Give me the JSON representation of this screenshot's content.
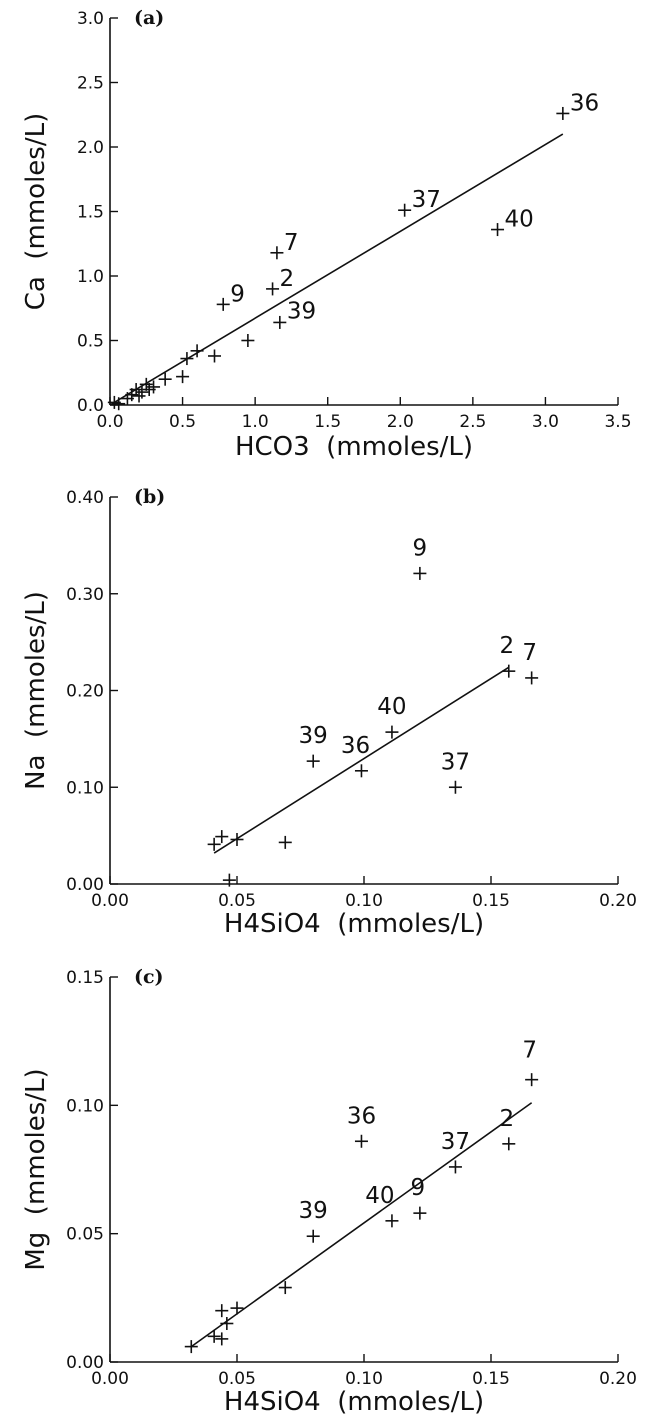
{
  "chart_data": [
    {
      "type": "scatter",
      "panel_label": "(a)",
      "xlabel": "HCO3  (mmoles/L)",
      "ylabel": "Ca  (mmoles/L)",
      "xlim": [
        0.0,
        3.5
      ],
      "ylim": [
        0.0,
        3.0
      ],
      "xticks": [
        "0.0",
        "0.5",
        "1.0",
        "1.5",
        "2.0",
        "2.5",
        "3.0",
        "3.5"
      ],
      "yticks": [
        "0.0",
        "0.5",
        "1.0",
        "1.5",
        "2.0",
        "2.5",
        "3.0"
      ],
      "grid": false,
      "points": [
        {
          "x": 0.03,
          "y": 0.02,
          "label": ""
        },
        {
          "x": 0.06,
          "y": 0.01,
          "label": ""
        },
        {
          "x": 0.12,
          "y": 0.05,
          "label": ""
        },
        {
          "x": 0.15,
          "y": 0.08,
          "label": ""
        },
        {
          "x": 0.18,
          "y": 0.12,
          "label": ""
        },
        {
          "x": 0.2,
          "y": 0.07,
          "label": ""
        },
        {
          "x": 0.22,
          "y": 0.1,
          "label": ""
        },
        {
          "x": 0.25,
          "y": 0.16,
          "label": ""
        },
        {
          "x": 0.27,
          "y": 0.12,
          "label": ""
        },
        {
          "x": 0.3,
          "y": 0.14,
          "label": ""
        },
        {
          "x": 0.38,
          "y": 0.2,
          "label": ""
        },
        {
          "x": 0.5,
          "y": 0.22,
          "label": ""
        },
        {
          "x": 0.53,
          "y": 0.36,
          "label": ""
        },
        {
          "x": 0.6,
          "y": 0.42,
          "label": ""
        },
        {
          "x": 0.72,
          "y": 0.38,
          "label": ""
        },
        {
          "x": 0.78,
          "y": 0.78,
          "label": "9"
        },
        {
          "x": 0.95,
          "y": 0.5,
          "label": ""
        },
        {
          "x": 1.12,
          "y": 0.9,
          "label": "2"
        },
        {
          "x": 1.15,
          "y": 1.18,
          "label": "7"
        },
        {
          "x": 1.17,
          "y": 0.64,
          "label": "39"
        },
        {
          "x": 2.03,
          "y": 1.51,
          "label": "37"
        },
        {
          "x": 2.67,
          "y": 1.36,
          "label": "40"
        },
        {
          "x": 3.12,
          "y": 2.26,
          "label": "36"
        }
      ],
      "fit_line": {
        "x": [
          0.0,
          3.12
        ],
        "y": [
          0.0,
          2.1
        ]
      }
    },
    {
      "type": "scatter",
      "panel_label": "(b)",
      "xlabel": "H4SiO4  (mmoles/L)",
      "ylabel": "Na  (mmoles/L)",
      "xlim": [
        0.0,
        0.2
      ],
      "ylim": [
        0.0,
        0.4
      ],
      "xticks": [
        "0.00",
        "0.05",
        "0.10",
        "0.15",
        "0.20"
      ],
      "yticks": [
        "0.00",
        "0.10",
        "0.20",
        "0.30",
        "0.40"
      ],
      "grid": false,
      "points": [
        {
          "x": 0.041,
          "y": 0.041,
          "label": ""
        },
        {
          "x": 0.044,
          "y": 0.049,
          "label": ""
        },
        {
          "x": 0.047,
          "y": 0.004,
          "label": ""
        },
        {
          "x": 0.05,
          "y": 0.046,
          "label": ""
        },
        {
          "x": 0.069,
          "y": 0.043,
          "label": ""
        },
        {
          "x": 0.08,
          "y": 0.127,
          "label": "39"
        },
        {
          "x": 0.099,
          "y": 0.117,
          "label": "36"
        },
        {
          "x": 0.111,
          "y": 0.157,
          "label": "40"
        },
        {
          "x": 0.122,
          "y": 0.321,
          "label": "9"
        },
        {
          "x": 0.136,
          "y": 0.1,
          "label": "37"
        },
        {
          "x": 0.157,
          "y": 0.22,
          "label": "2"
        },
        {
          "x": 0.166,
          "y": 0.213,
          "label": "7"
        }
      ],
      "fit_line": {
        "x": [
          0.041,
          0.157
        ],
        "y": [
          0.032,
          0.224
        ]
      }
    },
    {
      "type": "scatter",
      "panel_label": "(c)",
      "xlabel": "H4SiO4  (mmoles/L)",
      "ylabel": "Mg  (mmoles/L)",
      "xlim": [
        0.0,
        0.2
      ],
      "ylim": [
        0.0,
        0.15
      ],
      "xticks": [
        "0.00",
        "0.05",
        "0.10",
        "0.15",
        "0.20"
      ],
      "yticks": [
        "0.00",
        "0.05",
        "0.10",
        "0.15"
      ],
      "grid": false,
      "points": [
        {
          "x": 0.032,
          "y": 0.006,
          "label": ""
        },
        {
          "x": 0.041,
          "y": 0.01,
          "label": ""
        },
        {
          "x": 0.044,
          "y": 0.009,
          "label": ""
        },
        {
          "x": 0.044,
          "y": 0.02,
          "label": ""
        },
        {
          "x": 0.046,
          "y": 0.015,
          "label": ""
        },
        {
          "x": 0.05,
          "y": 0.021,
          "label": ""
        },
        {
          "x": 0.069,
          "y": 0.029,
          "label": ""
        },
        {
          "x": 0.08,
          "y": 0.049,
          "label": "39"
        },
        {
          "x": 0.099,
          "y": 0.086,
          "label": "36"
        },
        {
          "x": 0.111,
          "y": 0.055,
          "label": "40"
        },
        {
          "x": 0.122,
          "y": 0.058,
          "label": "9"
        },
        {
          "x": 0.136,
          "y": 0.076,
          "label": "37"
        },
        {
          "x": 0.157,
          "y": 0.085,
          "label": "2"
        },
        {
          "x": 0.166,
          "y": 0.11,
          "label": "7"
        }
      ],
      "fit_line": {
        "x": [
          0.032,
          0.166
        ],
        "y": [
          0.006,
          0.101
        ]
      }
    }
  ]
}
